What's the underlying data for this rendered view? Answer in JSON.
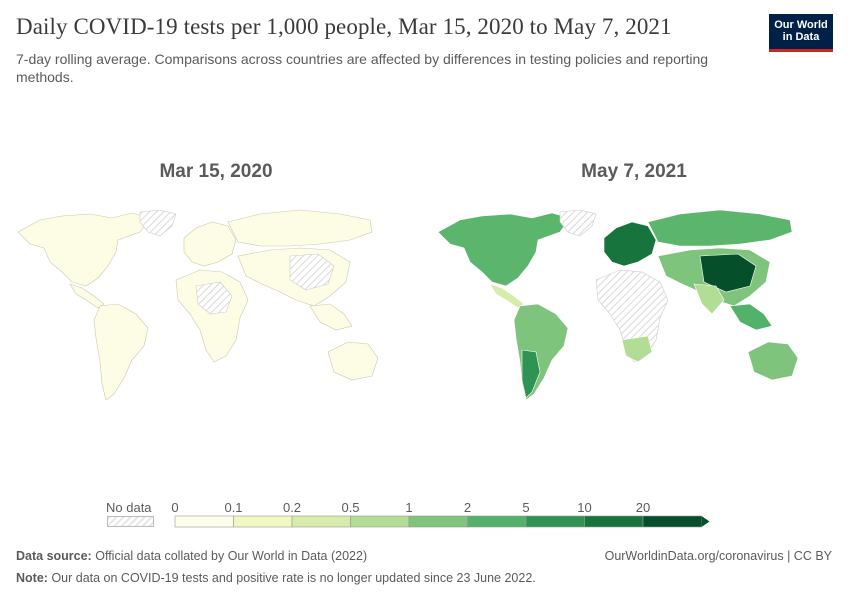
{
  "header": {
    "title": "Daily COVID-19 tests per 1,000 people, Mar 15, 2020 to May 7, 2021",
    "subtitle": "7-day rolling average. Comparisons across countries are affected by differences in testing policies and reporting methods.",
    "logo_line1": "Our World",
    "logo_line2": "in Data"
  },
  "maps": {
    "left_title": "Mar 15, 2020",
    "right_title": "May 7, 2021",
    "left_fill": "#fdfde5",
    "right_fill": "#5cb56d"
  },
  "legend": {
    "no_data_label": "No data",
    "bins": [
      {
        "label": "0",
        "color": "#fefeea"
      },
      {
        "label": "0.1",
        "color": "#f3f7c2"
      },
      {
        "label": "0.2",
        "color": "#d7ecab"
      },
      {
        "label": "0.5",
        "color": "#b2dd95"
      },
      {
        "label": "1",
        "color": "#7fc47d"
      },
      {
        "label": "2",
        "color": "#52b26a"
      },
      {
        "label": "5",
        "color": "#2f9453"
      },
      {
        "label": "10",
        "color": "#17743d"
      },
      {
        "label": "20",
        "color": "#05502a"
      }
    ],
    "colors": [
      "#fefeea",
      "#f3f7c2",
      "#d7ecab",
      "#b2dd95",
      "#7fc47d",
      "#52b26a",
      "#2f9453",
      "#17743d",
      "#05502a"
    ]
  },
  "footer": {
    "source_label": "Data source:",
    "source_text": "Official data collated by Our World in Data (2022)",
    "url_text": "OurWorldinData.org/coronavirus | CC BY",
    "note_label": "Note:",
    "note_text": "Our data on COVID-19 tests and positive rate is no longer updated since 23 June 2022."
  }
}
